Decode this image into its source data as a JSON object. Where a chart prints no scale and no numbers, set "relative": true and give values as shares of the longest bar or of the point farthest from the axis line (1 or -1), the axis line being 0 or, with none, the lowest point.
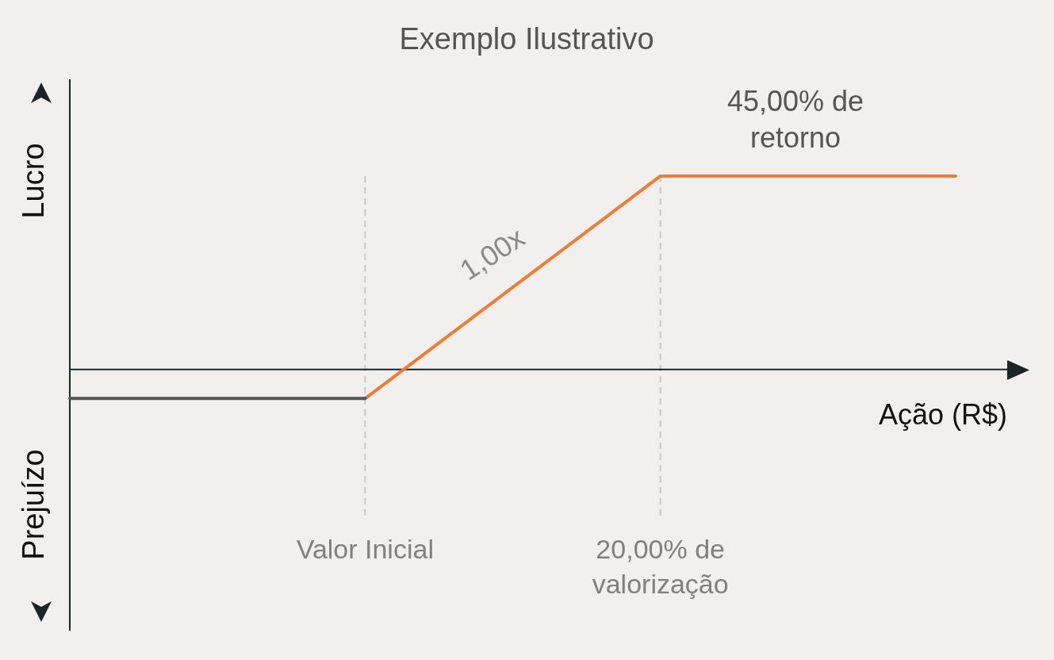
{
  "chart_data": {
    "type": "line",
    "title": "Exemplo Ilustrativo",
    "xlabel": "Ação (R$)",
    "relative": true,
    "categories": [
      null,
      "Valor Inicial",
      "20,00% de valorização",
      null
    ],
    "series": [
      {
        "color": "#555555",
        "values": [
          -0.15,
          -0.15,
          null,
          null
        ]
      },
      {
        "color": "#ee7d31",
        "values": [
          null,
          -0.15,
          1,
          1
        ]
      }
    ],
    "ref_lines": [
      {
        "axis": "x",
        "value": "Valor Inicial",
        "color": "#c8c8c8",
        "line_style": "dashed"
      },
      {
        "axis": "x",
        "value": "20,00% de valorização",
        "color": "#c8c8c8",
        "line_style": "dashed"
      }
    ],
    "annotations": [
      "1,00x",
      "45,00% de retorno",
      "Lucro",
      "Prejuízo"
    ],
    "legend": false,
    "marker": "none",
    "tick_labels": false,
    "line_style": "solid"
  }
}
